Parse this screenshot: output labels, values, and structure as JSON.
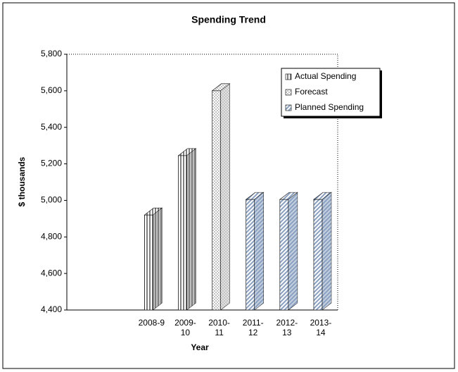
{
  "chart_data": {
    "type": "bar3d",
    "title": "Spending Trend",
    "x_label": "Year",
    "y_label": "$ thousands",
    "categories": [
      null,
      null,
      "2008-9",
      "2009-10",
      "2010-11",
      "2011-12",
      "2012-13",
      "2013-14"
    ],
    "series": [
      {
        "name": "Actual Spending",
        "color": "#808080",
        "values": [
          null,
          null,
          4920,
          5245,
          null,
          null,
          null,
          null
        ]
      },
      {
        "name": "Forecast",
        "color": "#c4c4c4",
        "values": [
          null,
          null,
          null,
          null,
          5600,
          null,
          null,
          null
        ]
      },
      {
        "name": "Planned Spending",
        "color": "#8aa0c0",
        "values": [
          null,
          null,
          null,
          null,
          null,
          5005,
          5005,
          5005
        ]
      }
    ],
    "ylim": [
      4400,
      5800
    ],
    "yticks": [
      {
        "value": 4400,
        "label": "4,400"
      },
      {
        "value": 4600,
        "label": "4,600"
      },
      {
        "value": 4800,
        "label": "4,800"
      },
      {
        "value": 5000,
        "label": "5,000"
      },
      {
        "value": 5200,
        "label": "5,200"
      },
      {
        "value": 5400,
        "label": "5,400"
      },
      {
        "value": 5600,
        "label": "5,600"
      },
      {
        "value": 5800,
        "label": "5,800"
      }
    ],
    "legend": "top-right"
  }
}
